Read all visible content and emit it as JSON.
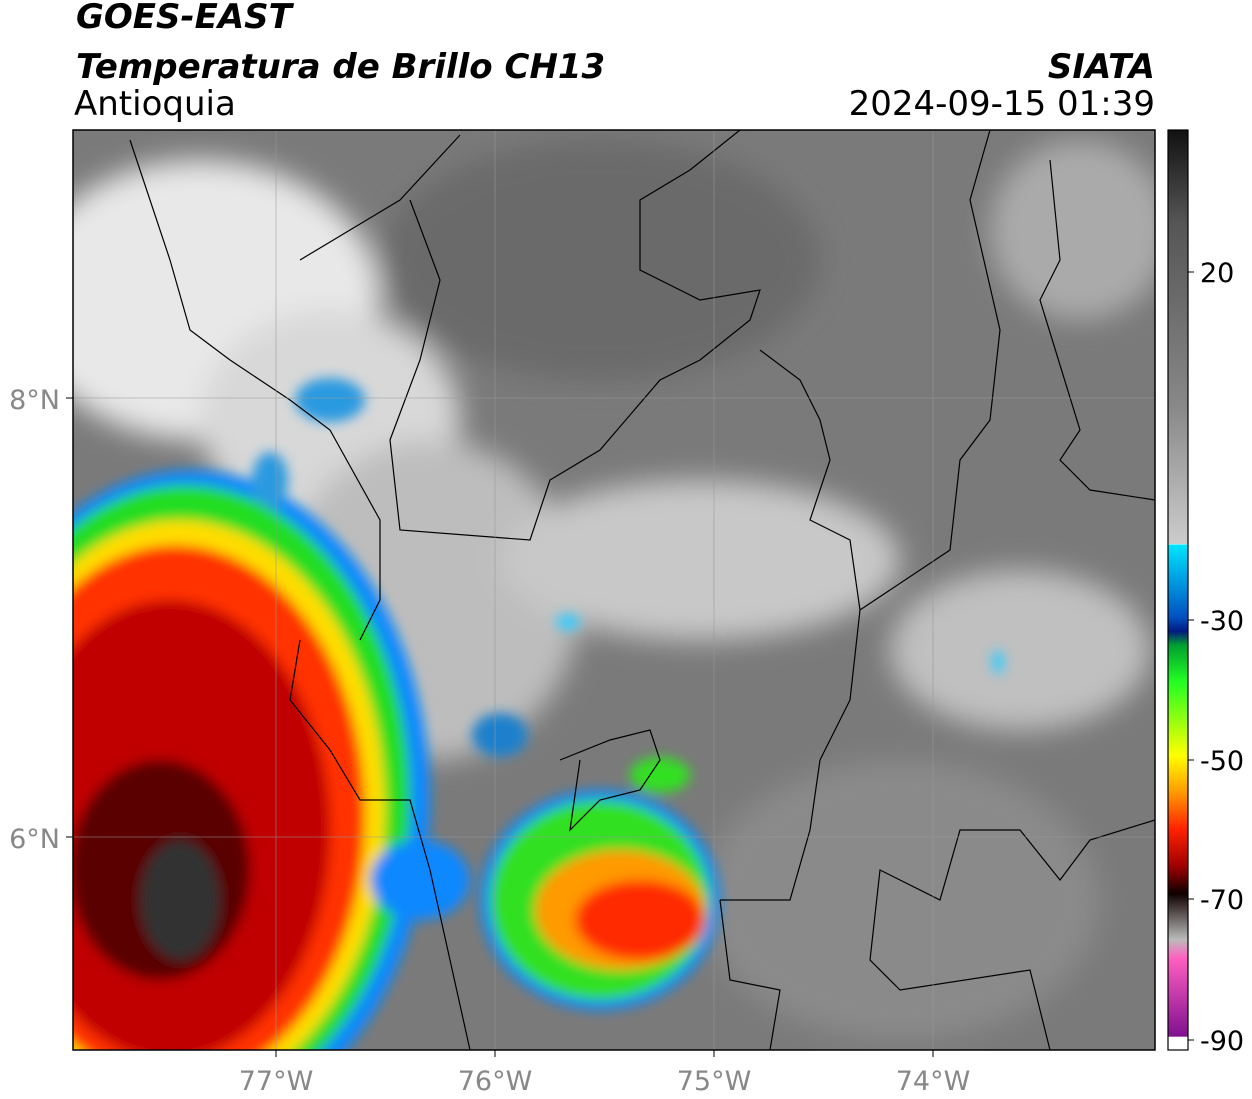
{
  "header": {
    "title": "GOES-EAST",
    "subtitle": "Temperatura de Brillo CH13",
    "region": "Antioquia",
    "source": "SIATA",
    "timestamp": "2024-09-15 01:39"
  },
  "map": {
    "lat_labels": [
      "8°N",
      "6°N"
    ],
    "lon_labels": [
      "77°W",
      "76°W",
      "75°W",
      "74°W"
    ]
  },
  "colorbar": {
    "ticks": [
      "20",
      "-30",
      "-50",
      "-70",
      "-90"
    ]
  }
}
